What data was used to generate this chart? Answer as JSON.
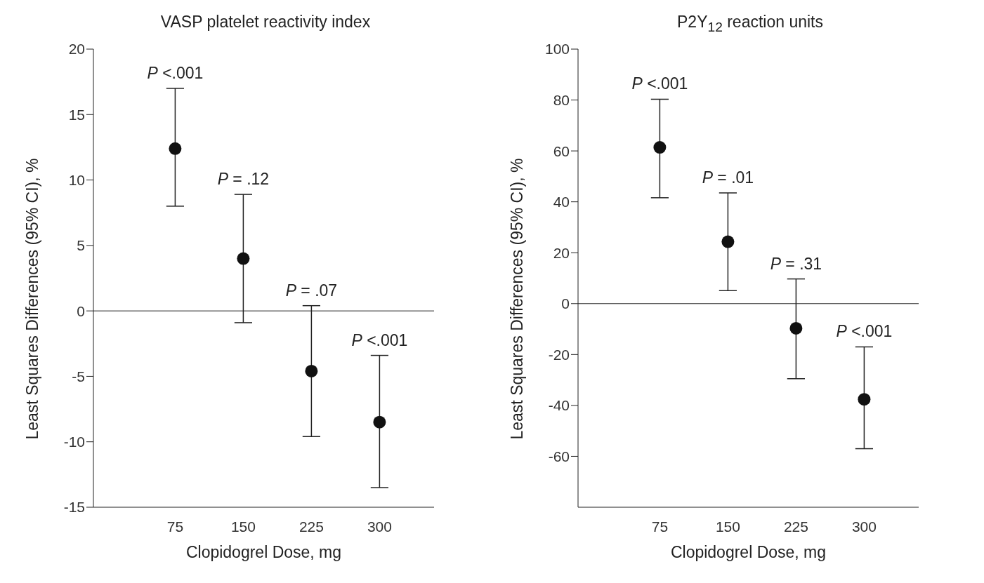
{
  "chart_data": [
    {
      "type": "scatter",
      "title": "VASP platelet reactivity index",
      "xlabel": "Clopidogrel Dose, mg",
      "ylabel": "Least Squares Differences (95% CI), %",
      "categories": [
        "75",
        "150",
        "225",
        "300"
      ],
      "values": [
        12.4,
        4.0,
        -4.6,
        -8.5
      ],
      "errors": [
        [
          8.0,
          17.0
        ],
        [
          -0.9,
          8.9
        ],
        [
          -9.6,
          0.4
        ],
        [
          -13.5,
          -3.4
        ]
      ],
      "color": "#111111",
      "marker": "circle",
      "grid": false,
      "ylim": [
        -15,
        20
      ],
      "yticks": [
        -15,
        -10,
        -5,
        0,
        5,
        10,
        15,
        20
      ],
      "ref_lines": [
        {
          "axis": "y",
          "value": 0,
          "color": "#222222"
        }
      ],
      "annotations": [
        {
          "text": "P <.001",
          "x": "75",
          "y": 17.0
        },
        {
          "text": "P = .12",
          "x": "150",
          "y": 8.9
        },
        {
          "text": "P = .07",
          "x": "225",
          "y": 0.4
        },
        {
          "text": "P <.001",
          "x": "300",
          "y": -3.4
        }
      ]
    },
    {
      "type": "scatter",
      "title": "P2Y$_{12}$ reaction units",
      "xlabel": "Clopidogrel Dose, mg",
      "ylabel": "Least Squares Differences (95% CI), %",
      "categories": [
        "75",
        "150",
        "225",
        "300"
      ],
      "values": [
        61.4,
        24.3,
        -9.7,
        -37.6
      ],
      "errors": [
        [
          41.6,
          80.3
        ],
        [
          5.1,
          43.5
        ],
        [
          -29.5,
          9.7
        ],
        [
          -57,
          -17
        ]
      ],
      "color": "#111111",
      "marker": "circle",
      "grid": false,
      "ylim": [
        -80,
        100
      ],
      "yticks": [
        -60,
        -40,
        -20,
        0,
        20,
        40,
        60,
        80,
        100
      ],
      "ref_lines": [
        {
          "axis": "y",
          "value": 0,
          "color": "#222222"
        }
      ],
      "annotations": [
        {
          "text": "P <.001",
          "x": "75",
          "y": 80.3
        },
        {
          "text": "P = .01",
          "x": "150",
          "y": 43.5
        },
        {
          "text": "P = .31",
          "x": "225",
          "y": 9.7
        },
        {
          "text": "P <.001",
          "x": "300",
          "y": -17
        }
      ]
    }
  ]
}
